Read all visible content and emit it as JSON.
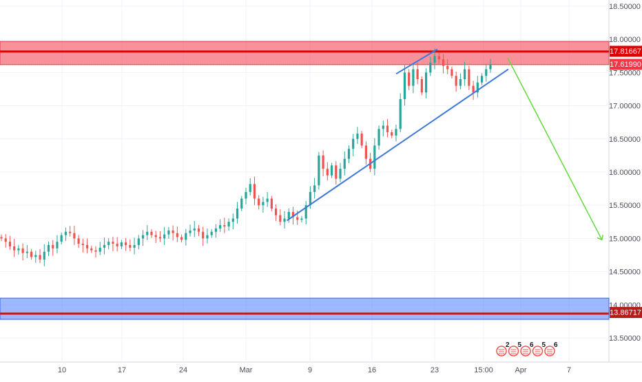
{
  "chart_data": {
    "type": "candlestick",
    "x_ticks": [
      "10",
      "17",
      "24",
      "Mar",
      "9",
      "16",
      "23",
      "15:00",
      "Apr",
      "7"
    ],
    "y_ticks": [
      "13.50000",
      "14.00000",
      "14.50000",
      "15.00000",
      "15.50000",
      "16.00000",
      "16.50000",
      "17.00000",
      "17.50000",
      "18.00000",
      "18.50000"
    ],
    "ylim": [
      13.2,
      18.65
    ],
    "price_labels": {
      "resistance": "17.81667",
      "current": "17.61990",
      "support": "13.86717"
    },
    "resistance_zone": [
      17.62,
      17.97
    ],
    "support_zone": [
      13.78,
      14.1
    ],
    "closes": [
      15.0,
      14.95,
      14.88,
      14.82,
      14.85,
      14.78,
      14.8,
      14.72,
      14.75,
      14.68,
      14.8,
      14.9,
      14.85,
      14.95,
      15.05,
      15.1,
      15.08,
      15.0,
      14.92,
      14.9,
      14.85,
      14.82,
      14.8,
      14.86,
      14.9,
      14.95,
      14.92,
      14.88,
      14.94,
      14.9,
      14.86,
      14.9,
      15.0,
      15.05,
      15.1,
      15.05,
      15.02,
      15.0,
      15.06,
      15.12,
      15.08,
      15.02,
      14.98,
      15.08,
      15.12,
      15.15,
      15.1,
      15.0,
      15.05,
      15.1,
      15.15,
      15.2,
      15.18,
      15.25,
      15.3,
      15.45,
      15.6,
      15.7,
      15.82,
      15.6,
      15.5,
      15.55,
      15.6,
      15.45,
      15.35,
      15.25,
      15.3,
      15.4,
      15.32,
      15.28,
      15.3,
      15.5,
      15.7,
      15.8,
      16.25,
      16.05,
      15.95,
      16.1,
      15.9,
      16.05,
      16.2,
      16.35,
      16.5,
      16.58,
      16.4,
      16.2,
      16.05,
      16.4,
      16.65,
      16.7,
      16.6,
      16.55,
      16.65,
      17.1,
      17.5,
      17.3,
      17.55,
      17.4,
      17.2,
      17.5,
      17.65,
      17.75,
      17.7,
      17.6,
      17.55,
      17.45,
      17.3,
      17.4,
      17.55,
      17.3,
      17.2,
      17.35,
      17.45,
      17.55,
      17.62
    ],
    "trendlines": [
      {
        "name": "lower trendline",
        "from": [
          0.4469,
          15.27
        ],
        "to": [
          0.7918,
          17.55
        ]
      },
      {
        "name": "upper channel line",
        "from": [
          0.617,
          17.48
        ],
        "to": [
          0.6813,
          17.85
        ]
      },
      {
        "name": "projection arrow",
        "from": [
          0.7908,
          17.72
        ],
        "to": [
          0.9375,
          14.98
        ]
      }
    ],
    "colors": {
      "up": "#26a69a",
      "down": "#ef5350",
      "resistance_fill": "#f23645",
      "resistance_line": "#e00000",
      "support_fill": "#2962ff",
      "support_line": "#b71c1c",
      "trendline": "#3c78d8",
      "arrow": "#62d83c"
    },
    "event_badges": [
      "2",
      "5",
      "6",
      "5",
      "6"
    ]
  }
}
